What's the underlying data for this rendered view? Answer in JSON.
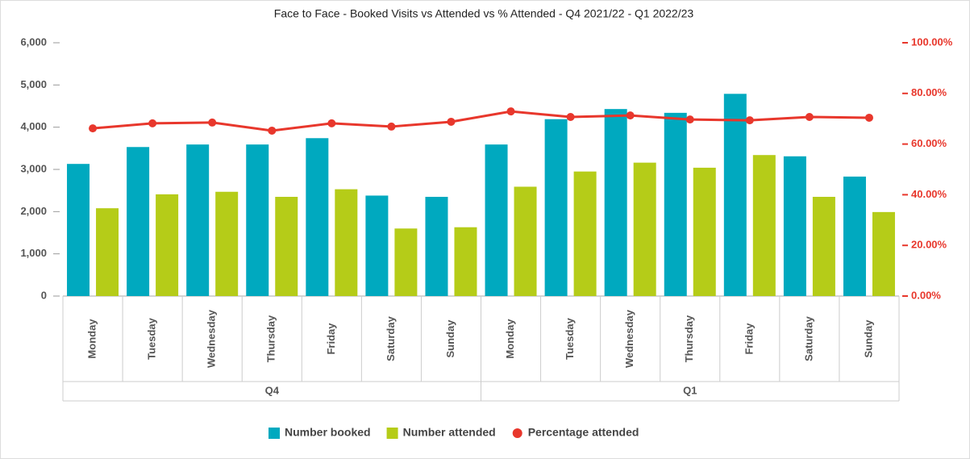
{
  "chart_data": {
    "type": "bar",
    "title": "Face to Face - Booked Visits vs Attended vs % Attended - Q4 2021/22 - Q1 2022/23",
    "categories": [
      "Monday",
      "Tuesday",
      "Wednesday",
      "Thursday",
      "Friday",
      "Saturday",
      "Sunday",
      "Monday",
      "Tuesday",
      "Wednesday",
      "Thursday",
      "Friday",
      "Saturday",
      "Sunday"
    ],
    "groups": [
      {
        "label": "Q4",
        "span": 7
      },
      {
        "label": "Q1",
        "span": 7
      }
    ],
    "series": [
      {
        "name": "Number booked",
        "color": "#00a9bf",
        "values": [
          3130,
          3530,
          3590,
          3590,
          3740,
          2380,
          2350,
          3590,
          4190,
          4430,
          4340,
          4790,
          3310,
          2830
        ]
      },
      {
        "name": "Number attended",
        "color": "#b5cc18",
        "values": [
          2080,
          2410,
          2470,
          2350,
          2530,
          1600,
          1630,
          2590,
          2950,
          3160,
          3040,
          3340,
          2350,
          1990
        ]
      },
      {
        "name": "Percentage attended",
        "color": "#e8372c",
        "type": "line",
        "axis": "y2",
        "values": [
          66.2,
          68.2,
          68.5,
          65.3,
          68.2,
          66.9,
          68.8,
          72.9,
          70.7,
          71.3,
          69.7,
          69.4,
          70.7,
          70.4
        ]
      }
    ],
    "ylim": [
      0,
      6000
    ],
    "yticks": [
      0,
      {
        "value": 1000,
        "label": "1,000"
      },
      {
        "value": 2000,
        "label": "2,000"
      },
      {
        "value": 3000,
        "label": "3,000"
      },
      {
        "value": 4000,
        "label": "4,000"
      },
      {
        "value": 5000,
        "label": "5,000"
      },
      {
        "value": 6000,
        "label": "6,000"
      }
    ],
    "y2lim": [
      0,
      100
    ],
    "y2ticks": [
      {
        "value": 0,
        "label": "0.00%"
      },
      {
        "value": 20,
        "label": "20.00%"
      },
      {
        "value": 40,
        "label": "40.00%"
      },
      {
        "value": 60,
        "label": "60.00%"
      },
      {
        "value": 80,
        "label": "80.00%"
      },
      {
        "value": 100,
        "label": "100.00%"
      }
    ],
    "grid": false,
    "legend": "bottom"
  }
}
